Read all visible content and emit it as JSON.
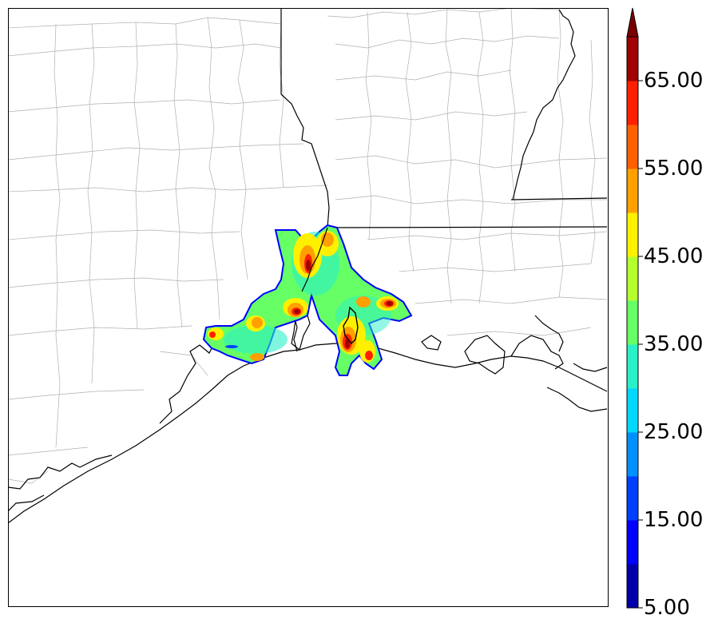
{
  "colorbar": {
    "min": 5,
    "max": 70,
    "step": 5,
    "extend": "max",
    "labels": [
      "65.00",
      "55.00",
      "45.00",
      "35.00",
      "25.00",
      "15.00",
      "5.00"
    ],
    "label_values": [
      65,
      55,
      45,
      35,
      25,
      15,
      5
    ],
    "colors": [
      "#0000a8",
      "#0000ff",
      "#0040ff",
      "#0090ff",
      "#00d8ff",
      "#29f0c8",
      "#66ff66",
      "#b4ff2c",
      "#fff000",
      "#ffa000",
      "#ff6000",
      "#ff2000",
      "#a00000"
    ],
    "extend_color": "#7a0000"
  },
  "colors": {
    "county_lines": "#b0b0b0",
    "state_coast_lines": "#000000",
    "field_low": "#0000ff",
    "field_mid": "#66ff66",
    "field_high": "#ff2000",
    "field_peak": "#a00000"
  }
}
